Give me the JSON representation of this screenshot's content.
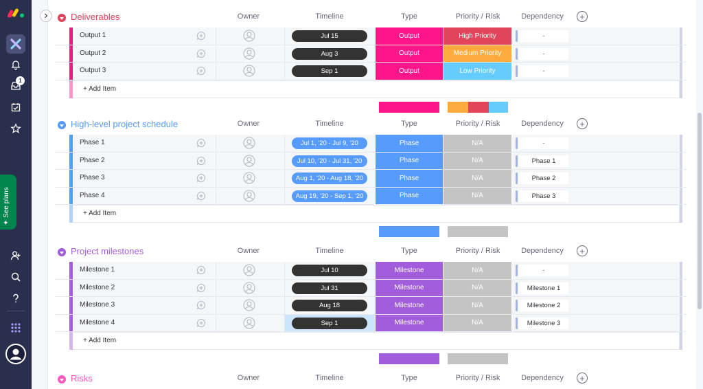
{
  "colors": {
    "sidebar": "#292f4c",
    "deliverables": "#e2445c",
    "output_stripe": "#ff158a",
    "schedule": "#579bfc",
    "milestones": "#a25ddc",
    "milestone_type": "#a25ddc",
    "high": "#e2445c",
    "medium": "#fdab3d",
    "low": "#66ccff",
    "na": "#c4c4c4",
    "dark_pill": "#333333",
    "blue_pill": "#579bfc"
  },
  "sidebar": {
    "icons": [
      "monday-logo-icon",
      "workspace-icon",
      "bell-icon",
      "inbox-icon",
      "my-work-icon",
      "favorites-icon",
      "invite-icon",
      "search-icon",
      "help-icon",
      "apps-grid-icon",
      "avatar-icon"
    ],
    "inbox_badge": "1",
    "see_plans": "See plans"
  },
  "columns": {
    "owner": "Owner",
    "timeline": "Timeline",
    "type": "Type",
    "priority": "Priority / Risk",
    "dependency": "Dependency"
  },
  "add_item_label": "+ Add Item",
  "groups": [
    {
      "title": "Deliverables",
      "items": [
        {
          "name": "Output 1",
          "timeline": "Jul 15",
          "type": "Output",
          "priority": "High Priority",
          "dependency": "-"
        },
        {
          "name": "Output 2",
          "timeline": "Aug 3",
          "type": "Output",
          "priority": "Medium Priority",
          "dependency": "-"
        },
        {
          "name": "Output 3",
          "timeline": "Sep 1",
          "type": "Output",
          "priority": "Low Priority",
          "dependency": "-"
        }
      ]
    },
    {
      "title": "High-level project schedule",
      "items": [
        {
          "name": "Phase 1",
          "timeline": "Jul 1, '20 - Jul 9, '20",
          "type": "Phase",
          "priority": "N/A",
          "dependency": "-"
        },
        {
          "name": "Phase 2",
          "timeline": "Jul 10, '20 - Jul 31, '20",
          "type": "Phase",
          "priority": "N/A",
          "dependency": "Phase 1"
        },
        {
          "name": "Phase 3",
          "timeline": "Aug 1, '20 - Aug 18, '20",
          "type": "Phase",
          "priority": "N/A",
          "dependency": "Phase 2"
        },
        {
          "name": "Phase 4",
          "timeline": "Aug 19, '20 - Sep 1, '20",
          "type": "Phase",
          "priority": "N/A",
          "dependency": "Phase 3"
        }
      ]
    },
    {
      "title": "Project milestones",
      "items": [
        {
          "name": "Milestone 1",
          "timeline": "Jul 10",
          "type": "Milestone",
          "priority": "N/A",
          "dependency": "-"
        },
        {
          "name": "Milestone 2",
          "timeline": "Jul 31",
          "type": "Milestone",
          "priority": "N/A",
          "dependency": "Milestone 1"
        },
        {
          "name": "Milestone 3",
          "timeline": "Aug 18",
          "type": "Milestone",
          "priority": "N/A",
          "dependency": "Milestone 2"
        },
        {
          "name": "Milestone 4",
          "timeline": "Sep 1",
          "type": "Milestone",
          "priority": "N/A",
          "dependency": "Milestone 3"
        }
      ]
    },
    {
      "title": "Risks",
      "items": []
    }
  ]
}
